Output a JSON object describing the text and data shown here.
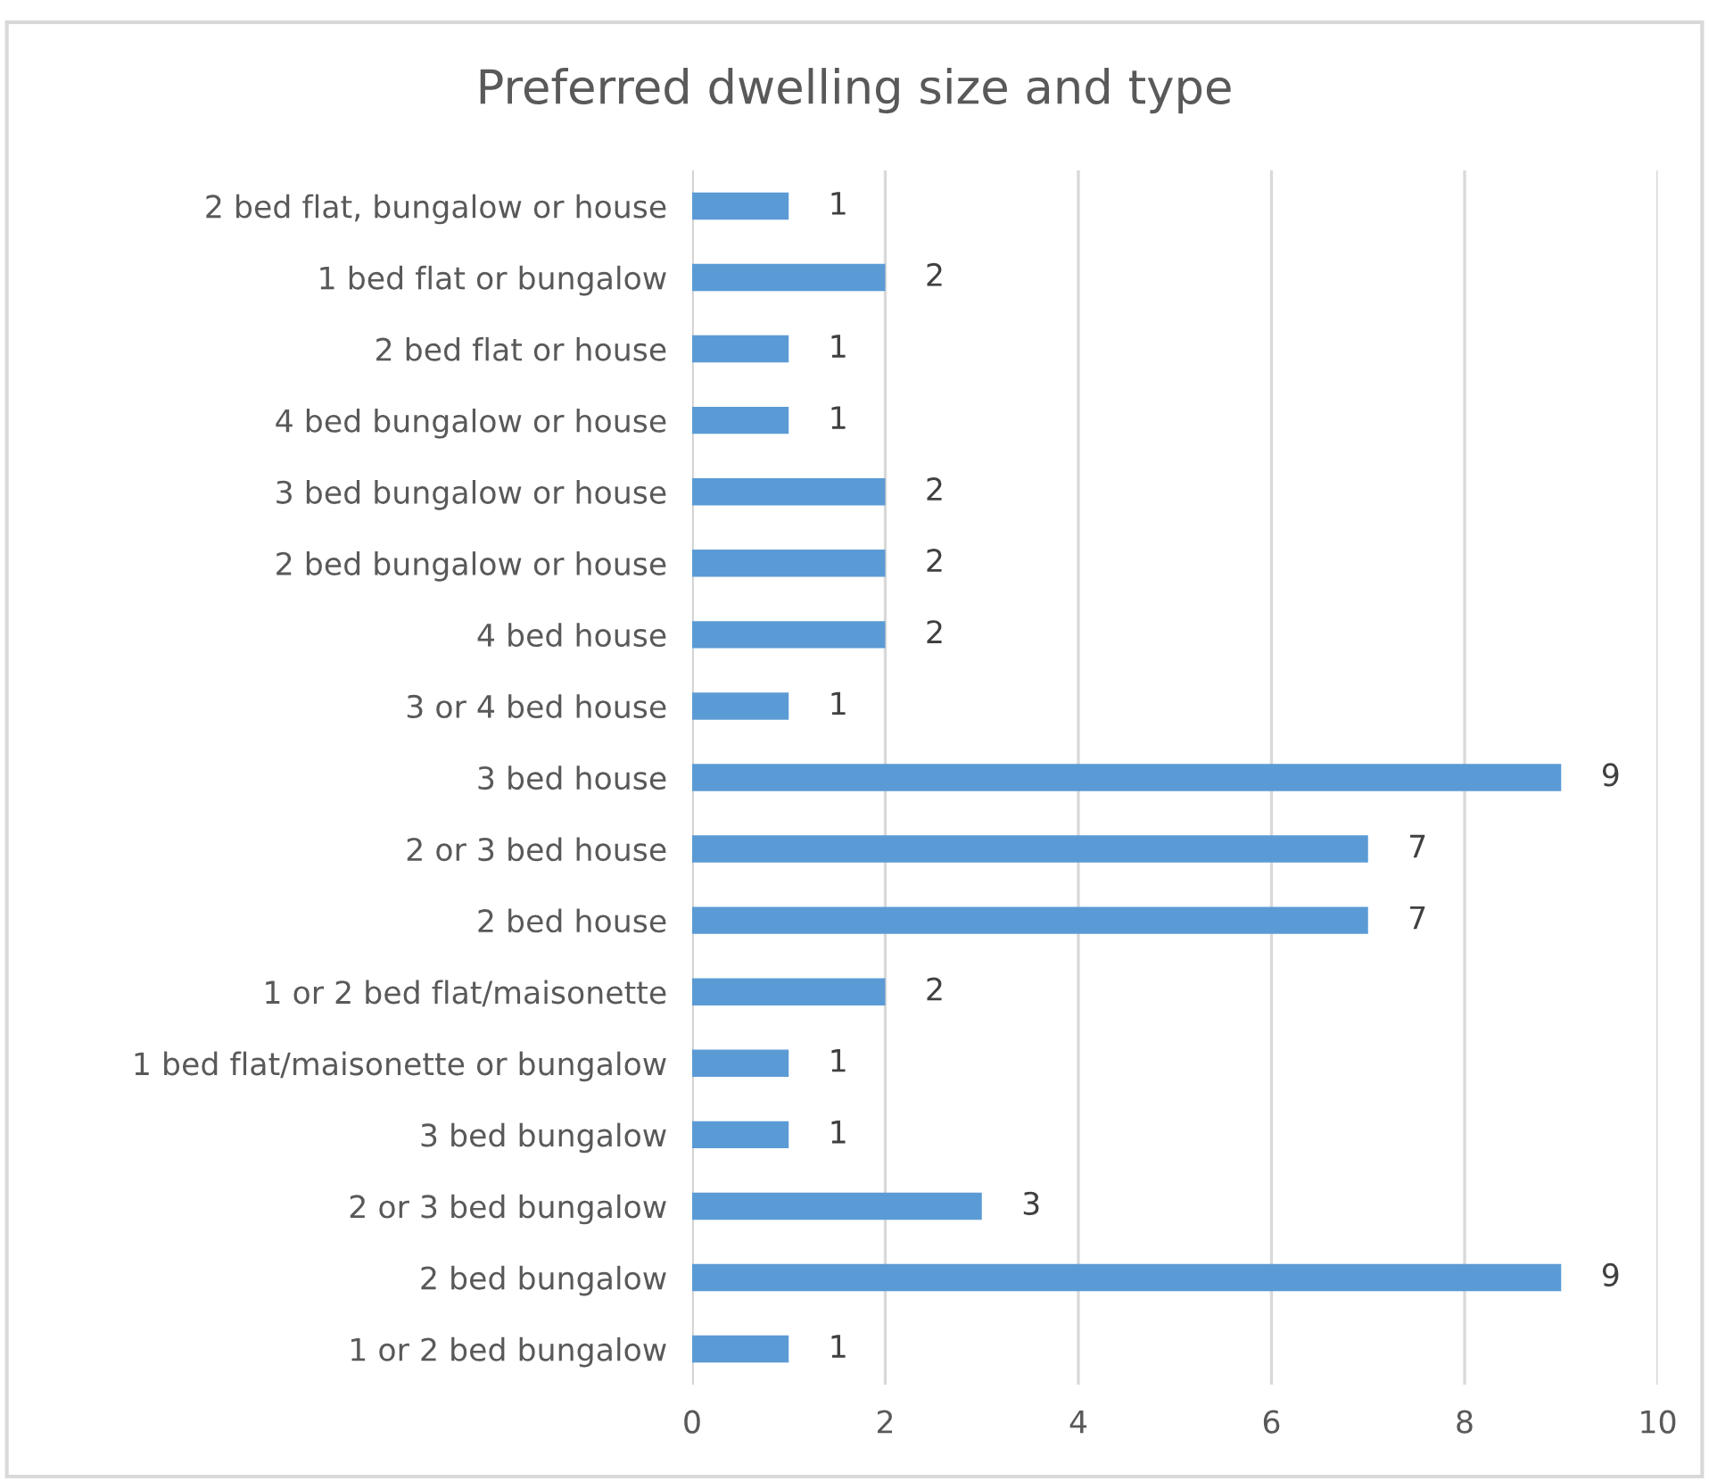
{
  "chart_data": {
    "type": "bar",
    "orientation": "horizontal",
    "title": "Preferred dwelling size and type",
    "categories": [
      "2 bed flat, bungalow or house",
      "1 bed flat or bungalow",
      "2 bed flat or house",
      "4 bed bungalow or house",
      "3 bed bungalow or house",
      "2 bed bungalow or house",
      "4 bed house",
      "3 or 4 bed house",
      "3 bed house",
      "2 or 3 bed house",
      "2 bed house",
      "1 or 2 bed flat/maisonette",
      "1 bed flat/maisonette or bungalow",
      "3 bed bungalow",
      "2 or 3 bed bungalow",
      "2 bed bungalow",
      "1 or 2 bed bungalow"
    ],
    "values": [
      1,
      2,
      1,
      1,
      2,
      2,
      2,
      1,
      9,
      7,
      7,
      2,
      1,
      1,
      3,
      9,
      1
    ],
    "color": "#5b9bd5",
    "xlim": [
      0,
      10
    ],
    "xticks": [
      0,
      2,
      4,
      6,
      8,
      10
    ],
    "grid": "x",
    "data_labels": true
  }
}
